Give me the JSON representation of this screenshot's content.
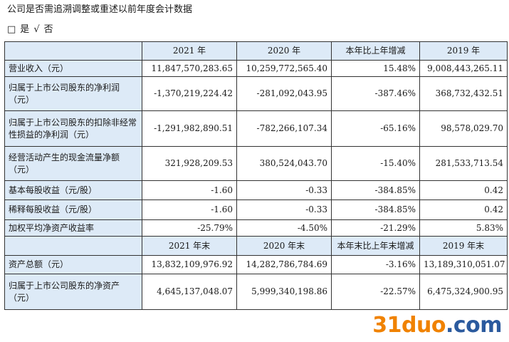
{
  "heading": "公司是否需追溯调整或重述以前年度会计数据",
  "options": {
    "yes_box": "□",
    "yes_label": "是",
    "no_mark": "√",
    "no_label": "否"
  },
  "table": {
    "header_1": [
      "",
      "2021 年",
      "2020 年",
      "本年比上年增减",
      "2019 年"
    ],
    "rows_1": [
      {
        "label": "营业收入（元）",
        "values": [
          "11,847,570,283.65",
          "10,259,772,565.40",
          "15.48%",
          "9,008,443,265.11"
        ]
      },
      {
        "label": "归属于上市公司股东的净利润（元）",
        "values": [
          "-1,370,219,224.42",
          "-281,092,043.95",
          "-387.46%",
          "368,732,432.51"
        ]
      },
      {
        "label": "归属于上市公司股东的扣除非经常性损益的净利润（元）",
        "values": [
          "-1,291,982,890.51",
          "-782,266,107.34",
          "-65.16%",
          "98,578,029.70"
        ]
      },
      {
        "label": "经营活动产生的现金流量净额（元）",
        "values": [
          "321,928,209.53",
          "380,524,043.70",
          "-15.40%",
          "281,533,713.54"
        ]
      },
      {
        "label": "基本每股收益（元/股）",
        "values": [
          "-1.60",
          "-0.33",
          "-384.85%",
          "0.42"
        ]
      },
      {
        "label": "稀释每股收益（元/股）",
        "values": [
          "-1.60",
          "-0.33",
          "-384.85%",
          "0.42"
        ]
      },
      {
        "label": "加权平均净资产收益率",
        "values": [
          "-25.79%",
          "-4.50%",
          "-21.29%",
          "5.83%"
        ]
      }
    ],
    "header_2": [
      "",
      "2021 年末",
      "2020 年末",
      "本年末比上年末增减",
      "2019 年末"
    ],
    "rows_2": [
      {
        "label": "资产总额（元）",
        "values": [
          "13,832,109,976.92",
          "14,282,786,784.69",
          "-3.16%",
          "13,189,310,051.07"
        ]
      },
      {
        "label": "归属于上市公司股东的净资产（元）",
        "values": [
          "4,645,137,048.07",
          "5,999,340,198.86",
          "-22.57%",
          "6,475,324,900.95"
        ]
      }
    ]
  },
  "watermark": {
    "part_a": "31duo",
    "part_b": ".com",
    "color_a": "#f08200",
    "color_b": "#2b5a9e"
  }
}
